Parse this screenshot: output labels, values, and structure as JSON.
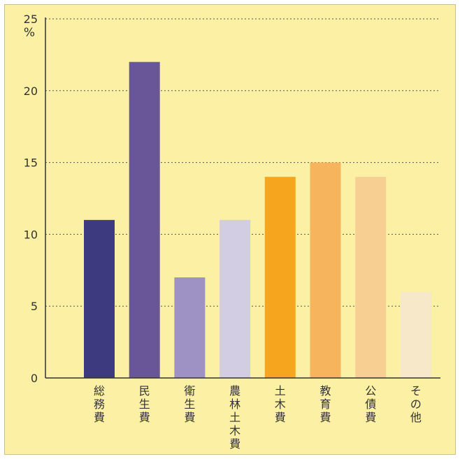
{
  "chart_data": {
    "type": "bar",
    "y_unit": "%",
    "ylim": [
      0,
      25
    ],
    "yticks": [
      0,
      5,
      10,
      15,
      20,
      25
    ],
    "grid": true,
    "categories": [
      "総務費",
      "民生費",
      "衛生費",
      "農林土木費",
      "土木費",
      "教育費",
      "公債費",
      "その他"
    ],
    "values": [
      11,
      22,
      7,
      11,
      14,
      15,
      14,
      6
    ],
    "colors": [
      "#3d3a80",
      "#685699",
      "#9d92c3",
      "#d3cde3",
      "#f5a51e",
      "#f6b55d",
      "#f7cf93",
      "#f6e8c8"
    ]
  },
  "colors": {
    "background": "#fbf0a3",
    "axis": "#333333",
    "grid": "#555555"
  }
}
